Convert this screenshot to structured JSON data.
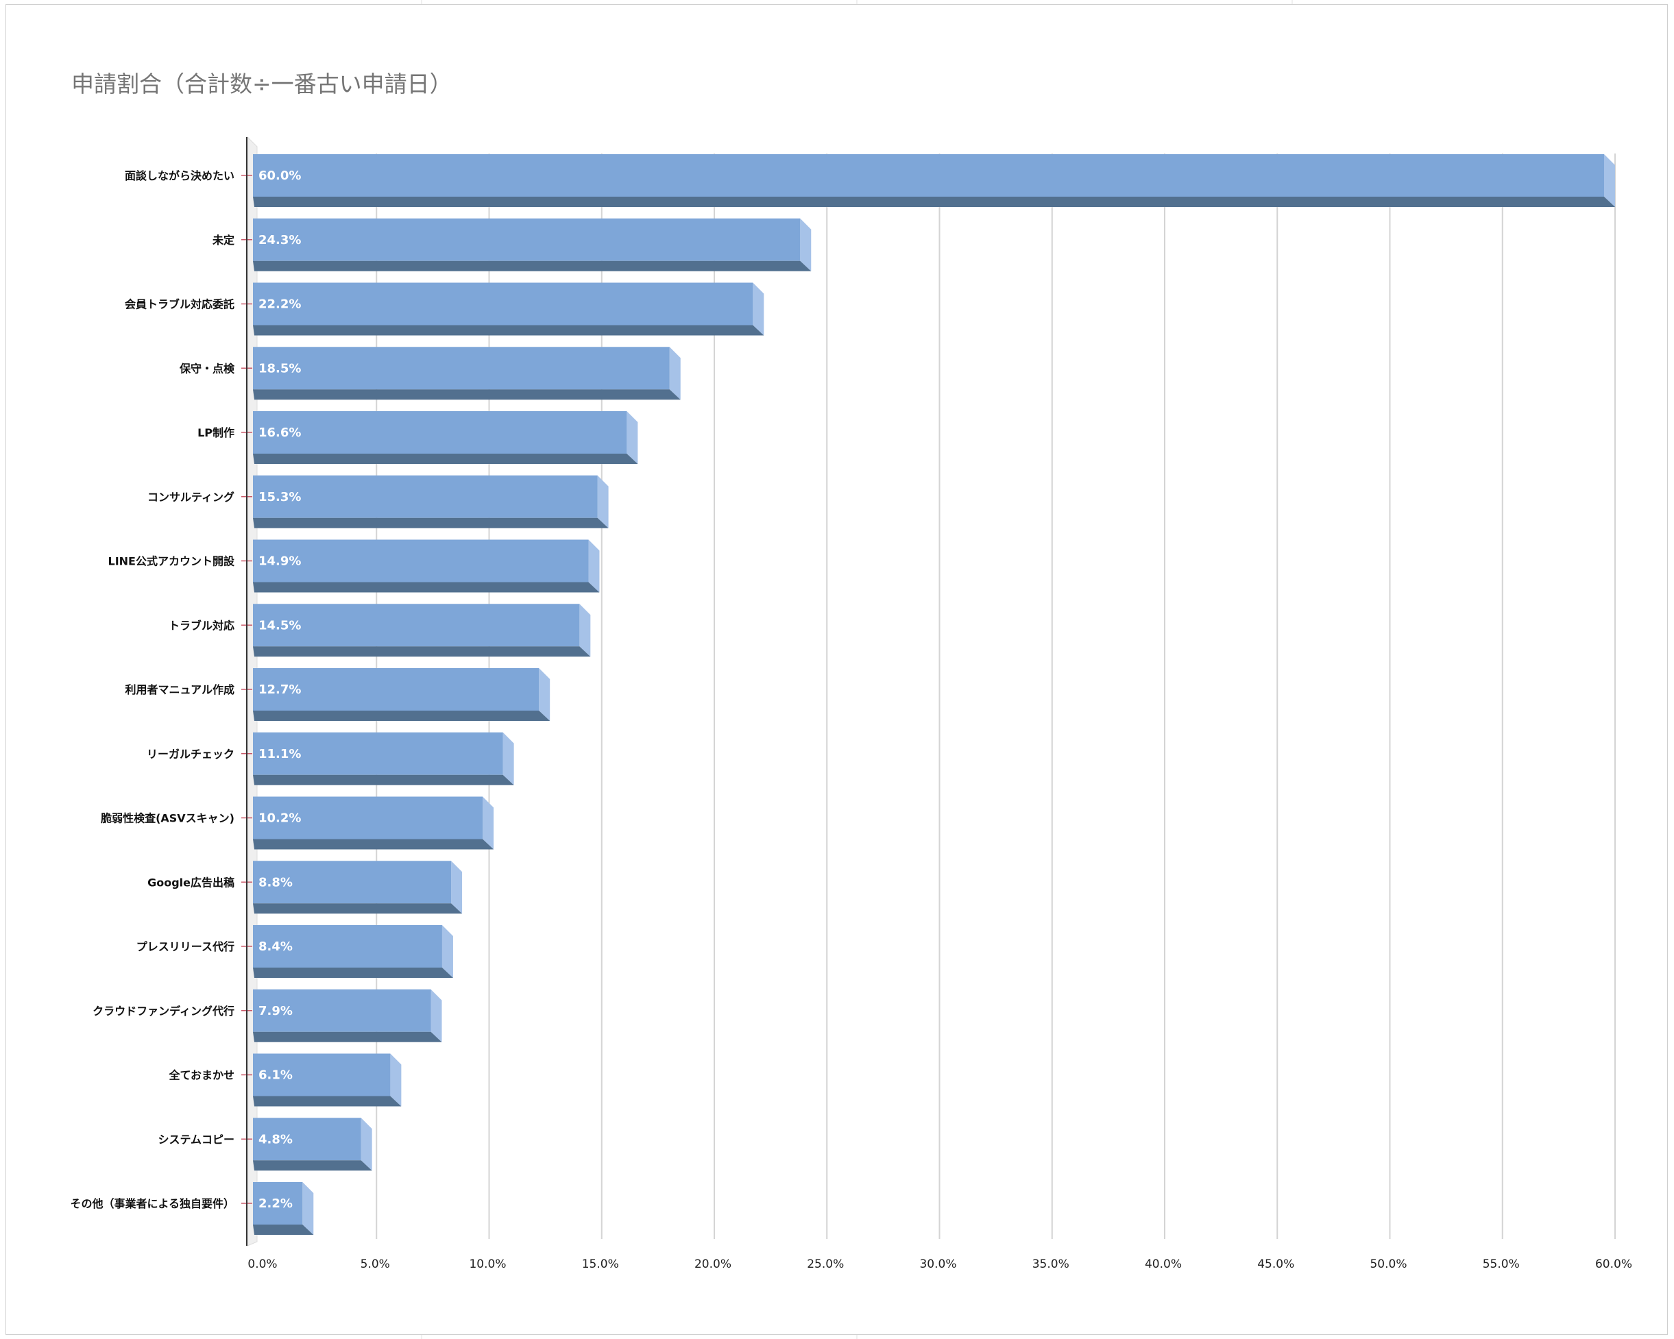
{
  "chart_data": {
    "type": "bar",
    "orientation": "horizontal",
    "title": "申請割合（合計数÷一番古い申請日）",
    "xlabel": "",
    "ylabel": "",
    "xlim": [
      0,
      60
    ],
    "x_ticks": [
      "0.0%",
      "5.0%",
      "10.0%",
      "15.0%",
      "20.0%",
      "25.0%",
      "30.0%",
      "35.0%",
      "40.0%",
      "45.0%",
      "50.0%",
      "55.0%",
      "60.0%"
    ],
    "grid": true,
    "legend": "none",
    "bar_color": "#7ea6d8",
    "bar_shadow_color": "#52708f",
    "categories": [
      "面談しながら決めたい",
      "未定",
      "会員トラブル対応委託",
      "保守・点検",
      "LP制作",
      "コンサルティング",
      "LINE公式アカウント開設",
      "トラブル対応",
      "利用者マニュアル作成",
      "リーガルチェック",
      "脆弱性検査(ASVスキャン)",
      "Google広告出稿",
      "プレスリリース代行",
      "クラウドファンディング代行",
      "全ておまかせ",
      "システムコピー",
      "その他（事業者による独自要件）"
    ],
    "values": [
      60.0,
      24.3,
      22.2,
      18.5,
      16.6,
      15.3,
      14.9,
      14.5,
      12.7,
      11.1,
      10.2,
      8.8,
      8.4,
      7.9,
      6.1,
      4.8,
      2.2
    ],
    "data_labels": [
      "60.0%",
      "24.3%",
      "22.2%",
      "18.5%",
      "16.6%",
      "15.3%",
      "14.9%",
      "14.5%",
      "12.7%",
      "11.1%",
      "10.2%",
      "8.8%",
      "8.4%",
      "7.9%",
      "6.1%",
      "4.8%",
      "2.2%"
    ]
  }
}
